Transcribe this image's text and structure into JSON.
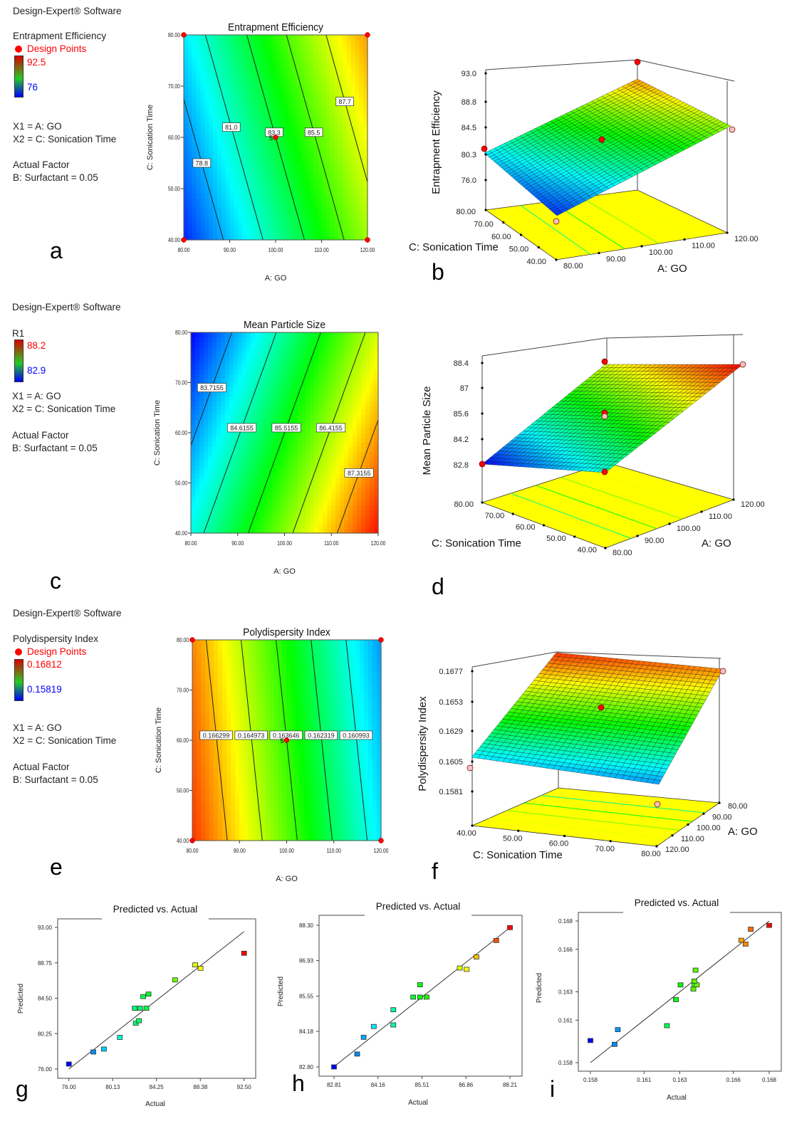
{
  "legends": [
    {
      "software": "Design-Expert® Software",
      "response": "Entrapment Efficiency",
      "design_points": "Design Points",
      "high": "92.5",
      "low": "76",
      "x1": "X1 = A: GO",
      "x2": "X2 = C: Sonication Time",
      "actual_factor": "Actual Factor",
      "factor_b": "B: Surfactant = 0.05"
    },
    {
      "software": "Design-Expert® Software",
      "response": "R1",
      "high": "88.2",
      "low": "82.9",
      "x1": "X1 = A: GO",
      "x2": "X2 = C: Sonication Time",
      "actual_factor": "Actual Factor",
      "factor_b": "B: Surfactant = 0.05"
    },
    {
      "software": "Design-Expert® Software",
      "response": "Polydispersity Index",
      "design_points": "Design Points",
      "high": "0.16812",
      "low": "0.15819",
      "x1": "X1 = A: GO",
      "x2": "X2 = C: Sonication Time",
      "actual_factor": "Actual Factor",
      "factor_b": "B: Surfactant = 0.05"
    }
  ],
  "panel_letters": [
    "a",
    "b",
    "c",
    "d",
    "e",
    "f",
    "g",
    "h",
    "i"
  ],
  "colors": {
    "high": "#ff0000",
    "low": "#0000ff",
    "design_point": "#ff0000",
    "floor": "#ffff00",
    "colormap": [
      "#0000ff",
      "#00ffff",
      "#00ff00",
      "#ffff00",
      "#ff0000"
    ]
  },
  "chart_data": [
    {
      "type": "contour",
      "panel": "a",
      "title": "Entrapment Efficiency",
      "xlabel": "A: GO",
      "ylabel": "C: Sonication Time",
      "xticks": [
        "80.00",
        "90.00",
        "100.00",
        "110.00",
        "120.00"
      ],
      "yticks": [
        "40.00",
        "50.00",
        "60.00",
        "70.00",
        "80.00"
      ],
      "xlim": [
        80,
        120
      ],
      "ylim": [
        40,
        80
      ],
      "color_range": [
        76,
        92.5
      ],
      "contour_levels": [
        "78.8",
        "81.0",
        "83.3",
        "85.5",
        "87.7"
      ],
      "design_points": [
        [
          80,
          40
        ],
        [
          80,
          80
        ],
        [
          120,
          40
        ],
        [
          120,
          80
        ],
        [
          100,
          60
        ]
      ],
      "center_replicates": "5"
    },
    {
      "type": "surface",
      "panel": "b",
      "zlabel": "Entrapment Efficiency",
      "xlabel": "A: GO",
      "ylabel": "C: Sonication Time",
      "zticks": [
        "76.0",
        "80.3",
        "84.5",
        "88.8",
        "93.0"
      ],
      "xticks": [
        "80.00",
        "90.00",
        "100.00",
        "110.00",
        "120.00"
      ],
      "yticks": [
        "40.00",
        "50.00",
        "60.00",
        "70.00",
        "80.00"
      ]
    },
    {
      "type": "contour",
      "panel": "c",
      "title": "Mean Particle Size",
      "xlabel": "A: GO",
      "ylabel": "C: Sonication Time",
      "xticks": [
        "80.00",
        "90.00",
        "100.00",
        "110.00",
        "120.00"
      ],
      "yticks": [
        "40.00",
        "50.00",
        "60.00",
        "70.00",
        "80.00"
      ],
      "xlim": [
        80,
        120
      ],
      "ylim": [
        40,
        80
      ],
      "color_range": [
        82.9,
        88.2
      ],
      "contour_levels": [
        "83.7155",
        "84.6155",
        "85.5155",
        "86.4155",
        "87.3155"
      ],
      "design_points": []
    },
    {
      "type": "surface",
      "panel": "d",
      "zlabel": "Mean Particle Size",
      "xlabel": "A: GO",
      "ylabel": "C: Sonication Time",
      "zticks": [
        "82.8",
        "84.2",
        "85.6",
        "87",
        "88.4"
      ],
      "xticks": [
        "80.00",
        "90.00",
        "100.00",
        "110.00",
        "120.00"
      ],
      "yticks": [
        "40.00",
        "50.00",
        "60.00",
        "70.00",
        "80.00"
      ]
    },
    {
      "type": "contour",
      "panel": "e",
      "title": "Polydispersity Index",
      "xlabel": "A: GO",
      "ylabel": "C: Sonication Time",
      "xticks": [
        "80.00",
        "90.00",
        "100.00",
        "110.00",
        "120.00"
      ],
      "yticks": [
        "40.00",
        "50.00",
        "60.00",
        "70.00",
        "80.00"
      ],
      "xlim": [
        80,
        120
      ],
      "ylim": [
        40,
        80
      ],
      "color_range": [
        0.15819,
        0.16812
      ],
      "contour_levels": [
        "0.166299",
        "0.164973",
        "0.163646",
        "0.162319",
        "0.160993"
      ],
      "design_points": [
        [
          80,
          40
        ],
        [
          80,
          80
        ],
        [
          120,
          40
        ],
        [
          120,
          80
        ],
        [
          100,
          60
        ]
      ],
      "center_replicates": "5"
    },
    {
      "type": "surface",
      "panel": "f",
      "zlabel": "Polydispersity Index",
      "xlabel": "A: GO",
      "ylabel": "C: Sonication Time",
      "zticks": [
        "0.1581",
        "0.1605",
        "0.1629",
        "0.1653",
        "0.1677"
      ],
      "xticks": [
        "80.00",
        "90.00",
        "100.00",
        "110.00",
        "120.00"
      ],
      "yticks": [
        "40.00",
        "50.00",
        "60.00",
        "70.00",
        "80.00"
      ]
    },
    {
      "type": "scatter",
      "panel": "g",
      "title": "Predicted vs. Actual",
      "xlabel": "Actual",
      "ylabel": "Predicted",
      "xticks": [
        "76.00",
        "80.13",
        "84.25",
        "88.38",
        "92.50"
      ],
      "yticks": [
        "76.00",
        "80.25",
        "84.50",
        "88.75",
        "93.00"
      ],
      "xlim": [
        76,
        92.5
      ],
      "ylim": [
        76,
        93
      ],
      "points": [
        [
          76.0,
          76.6
        ],
        [
          78.3,
          78.05
        ],
        [
          79.3,
          78.4
        ],
        [
          80.8,
          79.8
        ],
        [
          82.3,
          81.5
        ],
        [
          82.6,
          81.8
        ],
        [
          82.2,
          83.3
        ],
        [
          82.7,
          83.3
        ],
        [
          83.3,
          83.3
        ],
        [
          83.0,
          84.7
        ],
        [
          83.5,
          85.0
        ],
        [
          86.0,
          86.7
        ],
        [
          87.9,
          88.5
        ],
        [
          88.4,
          88.1
        ],
        [
          92.5,
          89.9
        ]
      ],
      "fit_line": [
        [
          76,
          76
        ],
        [
          92.5,
          92.5
        ]
      ]
    },
    {
      "type": "scatter",
      "panel": "h",
      "title": "Predicted vs. Actual",
      "xlabel": "Actual",
      "ylabel": "Predicted",
      "xticks": [
        "82.81",
        "84.16",
        "85.51",
        "86.86",
        "88.21"
      ],
      "yticks": [
        "82.80",
        "84.18",
        "85.55",
        "86.93",
        "88.30"
      ],
      "xlim": [
        82.81,
        88.21
      ],
      "ylim": [
        82.8,
        88.3
      ],
      "points": [
        [
          82.81,
          82.8
        ],
        [
          83.52,
          83.3
        ],
        [
          83.72,
          83.95
        ],
        [
          84.03,
          84.37
        ],
        [
          84.63,
          84.43
        ],
        [
          84.63,
          85.02
        ],
        [
          85.24,
          85.51
        ],
        [
          85.45,
          85.51
        ],
        [
          85.65,
          85.51
        ],
        [
          85.45,
          85.99
        ],
        [
          86.67,
          86.64
        ],
        [
          86.88,
          86.59
        ],
        [
          87.18,
          87.07
        ],
        [
          87.79,
          87.71
        ],
        [
          88.21,
          88.21
        ]
      ],
      "fit_line": [
        [
          82.81,
          82.81
        ],
        [
          88.21,
          88.21
        ]
      ]
    },
    {
      "type": "scatter",
      "panel": "i",
      "title": "Predicted vs. Actual",
      "xlabel": "Actual",
      "ylabel": "Predicted",
      "xticks": [
        "0.158",
        "0.161",
        "0.163",
        "0.166",
        "0.168"
      ],
      "yticks": [
        "0.158",
        "0.161",
        "0.163",
        "0.166",
        "0.168"
      ],
      "xlim": [
        0.158,
        0.168
      ],
      "ylim": [
        0.158,
        0.168
      ],
      "points": [
        [
          0.158,
          0.15956
        ],
        [
          0.15935,
          0.15929
        ],
        [
          0.15953,
          0.16033
        ],
        [
          0.16228,
          0.16061
        ],
        [
          0.16278,
          0.16245
        ],
        [
          0.16304,
          0.16349
        ],
        [
          0.16376,
          0.1632
        ],
        [
          0.16382,
          0.16349
        ],
        [
          0.16395,
          0.16349
        ],
        [
          0.16381,
          0.16376
        ],
        [
          0.16388,
          0.16453
        ],
        [
          0.16644,
          0.16664
        ],
        [
          0.16668,
          0.16637
        ],
        [
          0.16697,
          0.16742
        ],
        [
          0.168,
          0.16769
        ]
      ],
      "fit_line": [
        [
          0.158,
          0.158
        ],
        [
          0.168,
          0.168
        ]
      ]
    }
  ]
}
